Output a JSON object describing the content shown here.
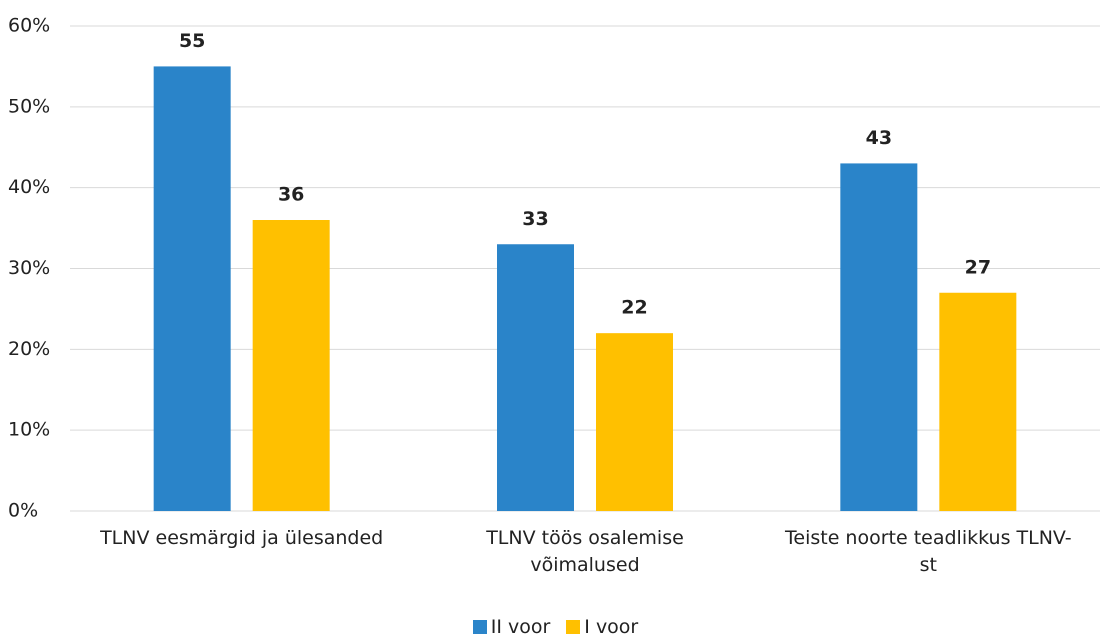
{
  "chart_data": {
    "type": "bar",
    "categories": [
      "TLNV eesmärgid ja ülesanded",
      "TLNV töös osalemise võimalused",
      "Teiste noorte teadlikkus TLNV-st"
    ],
    "series": [
      {
        "name": "II voor",
        "color": "#2a84c9",
        "values": [
          55,
          33,
          43
        ]
      },
      {
        "name": "I voor",
        "color": "#ffc000",
        "values": [
          36,
          22,
          27
        ]
      }
    ],
    "ylim": [
      0,
      60
    ],
    "yticks": [
      {
        "value": 0,
        "label": "0%"
      },
      {
        "value": 10,
        "label": "10%"
      },
      {
        "value": 20,
        "label": "20%"
      },
      {
        "value": 30,
        "label": "30%"
      },
      {
        "value": 40,
        "label": "40%"
      },
      {
        "value": 50,
        "label": "50%"
      },
      {
        "value": 60,
        "label": "60%"
      }
    ],
    "grid": true,
    "legend": "bottom"
  }
}
